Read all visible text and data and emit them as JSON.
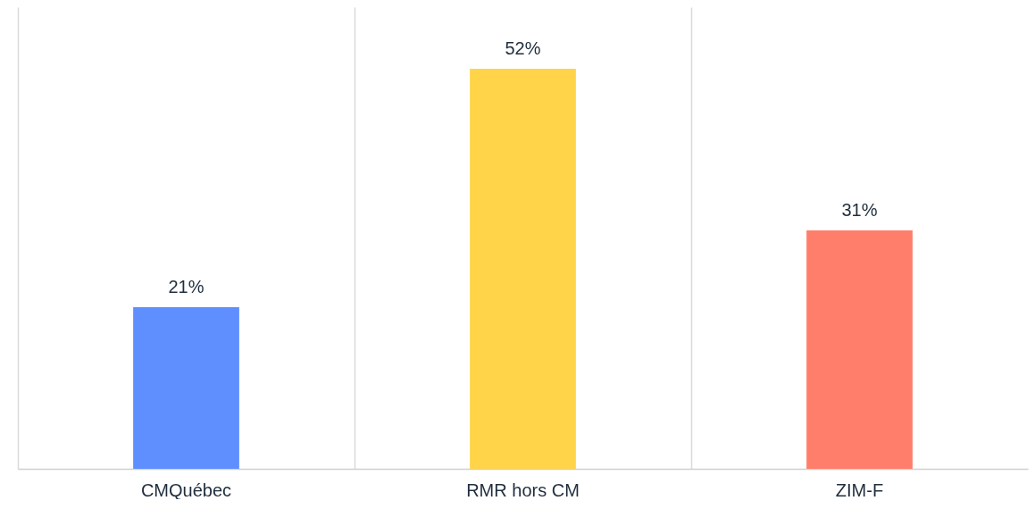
{
  "chart_data": {
    "type": "bar",
    "categories": [
      "CMQuébec",
      "RMR hors CM",
      "ZIM-F"
    ],
    "values": [
      21,
      52,
      31
    ],
    "colors": [
      "#5f8ffe",
      "#ffd448",
      "#ff7e6b"
    ],
    "value_labels": [
      "21%",
      "52%",
      "31%"
    ],
    "ylim": [
      0,
      60
    ],
    "grid": "x"
  }
}
